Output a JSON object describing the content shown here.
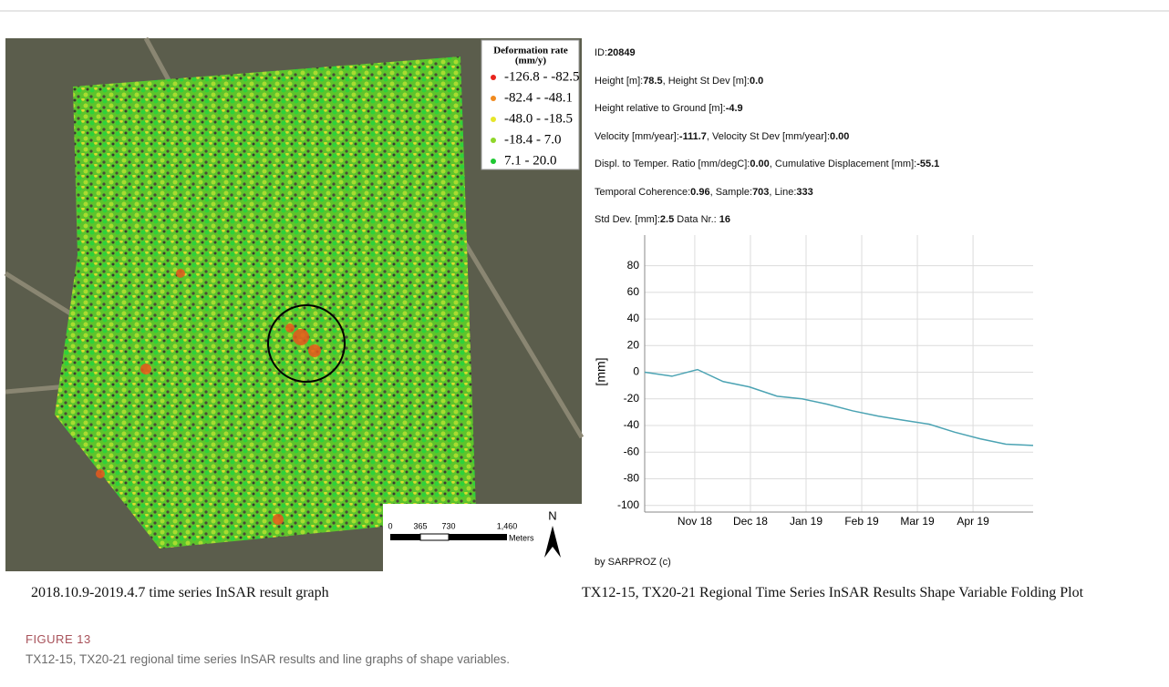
{
  "figure": {
    "map_caption": "2018.10.9-2019.4.7 time series InSAR result graph",
    "chart_caption": "TX12-15, TX20-21 Regional Time Series InSAR Results Shape Variable Folding Plot",
    "label": "FIGURE 13",
    "caption": "TX12-15, TX20-21 regional time series InSAR results and line graphs of shape variables."
  },
  "map": {
    "legend_title": [
      "Deformation rate",
      "(mm/y)"
    ],
    "legend": [
      {
        "label": "-126.8 - -82.5",
        "color": "#e8241c"
      },
      {
        "label": "-82.4 - -48.1",
        "color": "#f08a1e"
      },
      {
        "label": "-48.0 - -18.5",
        "color": "#e6e62a"
      },
      {
        "label": "-18.4 - 7.0",
        "color": "#8fd62a"
      },
      {
        "label": "7.1 - 20.0",
        "color": "#1ec832"
      }
    ],
    "scale_labels": [
      "0",
      "365",
      "730",
      "1,460"
    ],
    "scale_unit": "Meters",
    "north": "N"
  },
  "info": {
    "lines": [
      [
        [
          "ID:",
          "20849"
        ]
      ],
      [
        [
          "Height [m]:",
          "78.5"
        ],
        [
          ", Height St Dev [m]:",
          "0.0"
        ]
      ],
      [
        [
          "Height relative to Ground [m]:",
          "-4.9"
        ]
      ],
      [
        [
          "Velocity [mm/year]:",
          "-111.7"
        ],
        [
          ", Velocity St Dev [mm/year]:",
          "0.00"
        ]
      ],
      [
        [
          "Displ. to Temper. Ratio [mm/degC]:",
          "0.00"
        ],
        [
          ", Cumulative Displacement [mm]:",
          "-55.1"
        ]
      ],
      [
        [
          "Temporal Coherence:",
          "0.96"
        ],
        [
          ", Sample:",
          "703"
        ],
        [
          ", Line:",
          "333"
        ]
      ],
      [
        [
          "Std Dev. [mm]:",
          "2.5"
        ],
        [
          " Data Nr.: ",
          "16"
        ]
      ]
    ],
    "credit": "by SARPROZ (c)"
  },
  "chart_data": {
    "type": "line",
    "y_label": "[mm]",
    "x": [
      0.1,
      0.59,
      1.05,
      1.51,
      1.98,
      2.48,
      2.93,
      3.38,
      3.84,
      4.3,
      4.74,
      5.21,
      5.67,
      6.13,
      6.59,
      7.08
    ],
    "values": [
      0,
      -3,
      2,
      -7,
      -11,
      -18,
      -20,
      -24,
      -29,
      -33,
      -36,
      -39,
      -45,
      -50,
      -54,
      -55
    ],
    "color": "#4ba3b3",
    "xlim": [
      0.1,
      7.08
    ],
    "xticks": [
      {
        "value": 1,
        "label": "Nov 18"
      },
      {
        "value": 2,
        "label": "Dec 18"
      },
      {
        "value": 3,
        "label": "Jan 19"
      },
      {
        "value": 4,
        "label": "Feb 19"
      },
      {
        "value": 5,
        "label": "Mar 19"
      },
      {
        "value": 6,
        "label": "Apr 19"
      }
    ],
    "ylim": [
      -105,
      103
    ],
    "yticks": [
      80,
      60,
      40,
      20,
      0,
      -20,
      -40,
      -60,
      -80,
      -100
    ],
    "grid": true
  }
}
